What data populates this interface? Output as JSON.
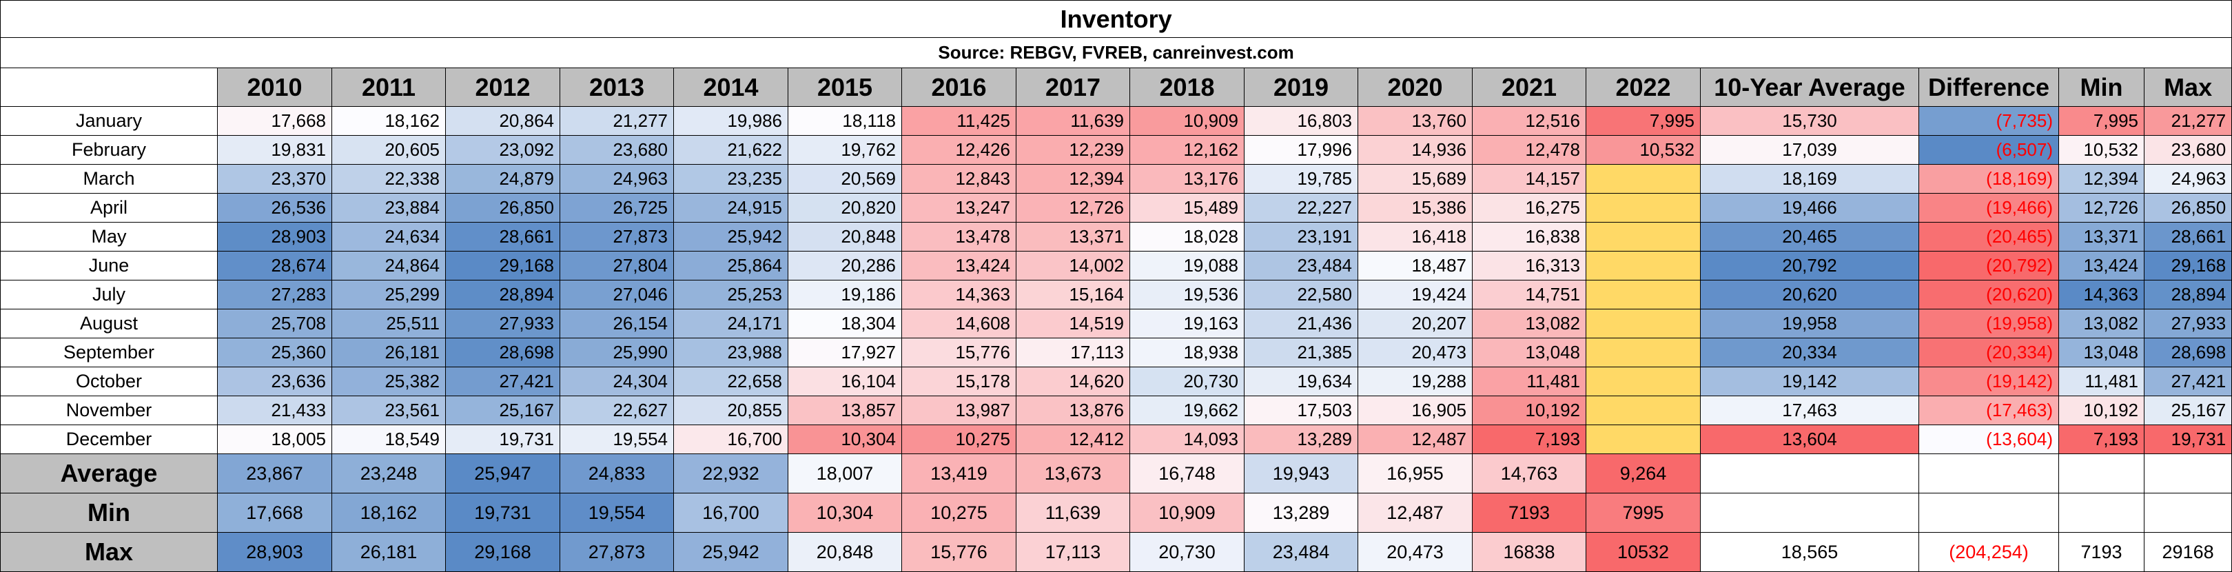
{
  "title": "Inventory",
  "source": "Source: REBGV, FVREB, canreinvest.com",
  "headers": [
    "2010",
    "2011",
    "2012",
    "2013",
    "2014",
    "2015",
    "2016",
    "2017",
    "2018",
    "2019",
    "2020",
    "2021",
    "2022",
    "10-Year Average",
    "Difference",
    "Min",
    "Max"
  ],
  "months": [
    {
      "label": "January",
      "values": [
        "17,668",
        "18,162",
        "20,864",
        "21,277",
        "19,986",
        "18,118",
        "11,425",
        "11,639",
        "10,909",
        "16,803",
        "13,760",
        "12,516",
        "7,995"
      ],
      "avg": "15,730",
      "diff": "(7,735)",
      "min": "7,995",
      "max": "21,277"
    },
    {
      "label": "February",
      "values": [
        "19,831",
        "20,605",
        "23,092",
        "23,680",
        "21,622",
        "19,762",
        "12,426",
        "12,239",
        "12,162",
        "17,996",
        "14,936",
        "12,478",
        "10,532"
      ],
      "avg": "17,039",
      "diff": "(6,507)",
      "min": "10,532",
      "max": "23,680"
    },
    {
      "label": "March",
      "values": [
        "23,370",
        "22,338",
        "24,879",
        "24,963",
        "23,235",
        "20,569",
        "12,843",
        "12,394",
        "13,176",
        "19,785",
        "15,689",
        "14,157",
        ""
      ],
      "avg": "18,169",
      "diff": "(18,169)",
      "min": "12,394",
      "max": "24,963"
    },
    {
      "label": "April",
      "values": [
        "26,536",
        "23,884",
        "26,850",
        "26,725",
        "24,915",
        "20,820",
        "13,247",
        "12,726",
        "15,489",
        "22,227",
        "15,386",
        "16,275",
        ""
      ],
      "avg": "19,466",
      "diff": "(19,466)",
      "min": "12,726",
      "max": "26,850"
    },
    {
      "label": "May",
      "values": [
        "28,903",
        "24,634",
        "28,661",
        "27,873",
        "25,942",
        "20,848",
        "13,478",
        "13,371",
        "18,028",
        "23,191",
        "16,418",
        "16,838",
        ""
      ],
      "avg": "20,465",
      "diff": "(20,465)",
      "min": "13,371",
      "max": "28,661"
    },
    {
      "label": "June",
      "values": [
        "28,674",
        "24,864",
        "29,168",
        "27,804",
        "25,864",
        "20,286",
        "13,424",
        "14,002",
        "19,088",
        "23,484",
        "18,487",
        "16,313",
        ""
      ],
      "avg": "20,792",
      "diff": "(20,792)",
      "min": "13,424",
      "max": "29,168"
    },
    {
      "label": "July",
      "values": [
        "27,283",
        "25,299",
        "28,894",
        "27,046",
        "25,253",
        "19,186",
        "14,363",
        "15,164",
        "19,536",
        "22,580",
        "19,424",
        "14,751",
        ""
      ],
      "avg": "20,620",
      "diff": "(20,620)",
      "min": "14,363",
      "max": "28,894"
    },
    {
      "label": "August",
      "values": [
        "25,708",
        "25,511",
        "27,933",
        "26,154",
        "24,171",
        "18,304",
        "14,608",
        "14,519",
        "19,163",
        "21,436",
        "20,207",
        "13,082",
        ""
      ],
      "avg": "19,958",
      "diff": "(19,958)",
      "min": "13,082",
      "max": "27,933"
    },
    {
      "label": "September",
      "values": [
        "25,360",
        "26,181",
        "28,698",
        "25,990",
        "23,988",
        "17,927",
        "15,776",
        "17,113",
        "18,938",
        "21,385",
        "20,473",
        "13,048",
        ""
      ],
      "avg": "20,334",
      "diff": "(20,334)",
      "min": "13,048",
      "max": "28,698"
    },
    {
      "label": "October",
      "values": [
        "23,636",
        "25,382",
        "27,421",
        "24,304",
        "22,658",
        "16,104",
        "15,178",
        "14,620",
        "20,730",
        "19,634",
        "19,288",
        "11,481",
        ""
      ],
      "avg": "19,142",
      "diff": "(19,142)",
      "min": "11,481",
      "max": "27,421"
    },
    {
      "label": "November",
      "values": [
        "21,433",
        "23,561",
        "25,167",
        "22,627",
        "20,855",
        "13,857",
        "13,987",
        "13,876",
        "19,662",
        "17,503",
        "16,905",
        "10,192",
        ""
      ],
      "avg": "17,463",
      "diff": "(17,463)",
      "min": "10,192",
      "max": "25,167"
    },
    {
      "label": "December",
      "values": [
        "18,005",
        "18,549",
        "19,731",
        "19,554",
        "16,700",
        "10,304",
        "10,275",
        "12,412",
        "14,093",
        "13,289",
        "12,487",
        "7,193",
        ""
      ],
      "avg": "13,604",
      "diff": "(13,604)",
      "min": "7,193",
      "max": "19,731"
    }
  ],
  "summary": [
    {
      "label": "Average",
      "values": [
        "23,867",
        "23,248",
        "25,947",
        "24,833",
        "22,932",
        "18,007",
        "13,419",
        "13,673",
        "16,748",
        "19,943",
        "16,955",
        "14,763",
        "9,264"
      ],
      "avg": "",
      "diff": "",
      "min": "",
      "max": ""
    },
    {
      "label": "Min",
      "values": [
        "17,668",
        "18,162",
        "19,731",
        "19,554",
        "16,700",
        "10,304",
        "10,275",
        "11,639",
        "10,909",
        "13,289",
        "12,487",
        "7193",
        "7995"
      ],
      "avg": "",
      "diff": "",
      "min": "",
      "max": ""
    },
    {
      "label": "Max",
      "values": [
        "28,903",
        "26,181",
        "29,168",
        "27,873",
        "25,942",
        "20,848",
        "15,776",
        "17,113",
        "20,730",
        "23,484",
        "20,473",
        "16838",
        "10532"
      ],
      "avg": "18,565",
      "diff": "(204,254)",
      "min": "7193",
      "max": "29168"
    }
  ],
  "colors": {
    "header_gray": "#bfbfbf",
    "scale_high": "#5a8ac6",
    "scale_mid": "#fcfcff",
    "scale_low": "#f8696b",
    "blank_2022": "#ffd966",
    "negative_text": "#ff0000"
  }
}
